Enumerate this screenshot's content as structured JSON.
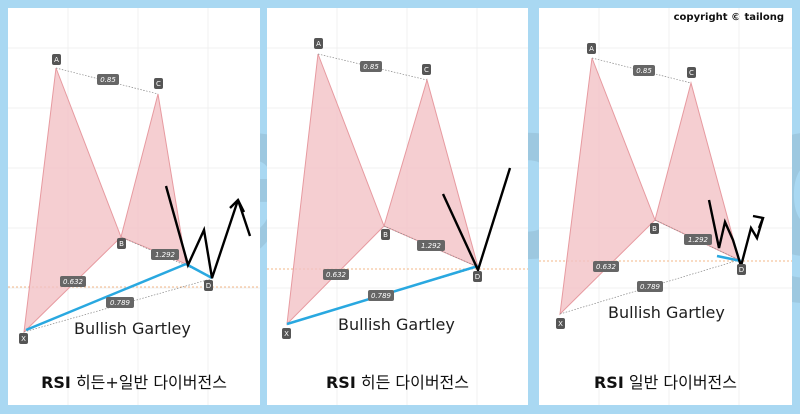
{
  "copyright": "copyright © tailong",
  "watermark": "tailong",
  "pattern_name": "Bullish Gartley",
  "point_labels": {
    "X": "X",
    "A": "A",
    "B": "B",
    "C": "C",
    "D": "D"
  },
  "ratios": {
    "ab": "0.632",
    "ac": "0.85",
    "bd": "1.292",
    "xd": "0.789"
  },
  "panels": [
    {
      "rsi": "RSI",
      "caption": "히든+일반 다이버전스"
    },
    {
      "rsi": "RSI",
      "caption": "히든 다이버전스"
    },
    {
      "rsi": "RSI",
      "caption": "일반 다이버전스"
    }
  ],
  "colors": {
    "background": "#a9d8f2",
    "pattern_fill": "#f2c2c5",
    "pattern_stroke": "#e79aa0",
    "divergence_line": "#29a8e0",
    "price_path": "#000000",
    "label_box": "#555555"
  }
}
